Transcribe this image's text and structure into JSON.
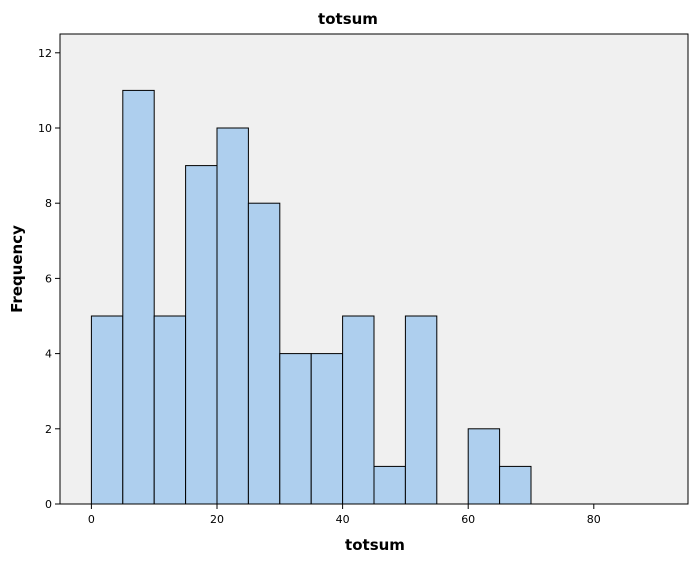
{
  "chart_data": {
    "type": "bar",
    "title": "totsum",
    "xlabel": "totsum",
    "ylabel": "Frequency",
    "bin_width": 5,
    "bins": [
      {
        "start": 0,
        "end": 5,
        "count": 5
      },
      {
        "start": 5,
        "end": 10,
        "count": 11
      },
      {
        "start": 10,
        "end": 15,
        "count": 5
      },
      {
        "start": 15,
        "end": 20,
        "count": 9
      },
      {
        "start": 20,
        "end": 25,
        "count": 10
      },
      {
        "start": 25,
        "end": 30,
        "count": 8
      },
      {
        "start": 30,
        "end": 35,
        "count": 4
      },
      {
        "start": 35,
        "end": 40,
        "count": 4
      },
      {
        "start": 40,
        "end": 45,
        "count": 5
      },
      {
        "start": 45,
        "end": 50,
        "count": 1
      },
      {
        "start": 50,
        "end": 55,
        "count": 5
      },
      {
        "start": 55,
        "end": 60,
        "count": 0
      },
      {
        "start": 60,
        "end": 65,
        "count": 2
      },
      {
        "start": 65,
        "end": 70,
        "count": 1
      }
    ],
    "xlim": [
      -5,
      95
    ],
    "ylim": [
      0,
      12.5
    ],
    "xticks": [
      0,
      20,
      40,
      60,
      80
    ],
    "yticks": [
      0,
      2,
      4,
      6,
      8,
      10,
      12
    ],
    "grid": false,
    "legend": "none",
    "colors": {
      "bar_fill": "#aecfee",
      "bar_stroke": "#000000",
      "plot_background": "#f0f0f0",
      "axis": "#000000"
    }
  }
}
